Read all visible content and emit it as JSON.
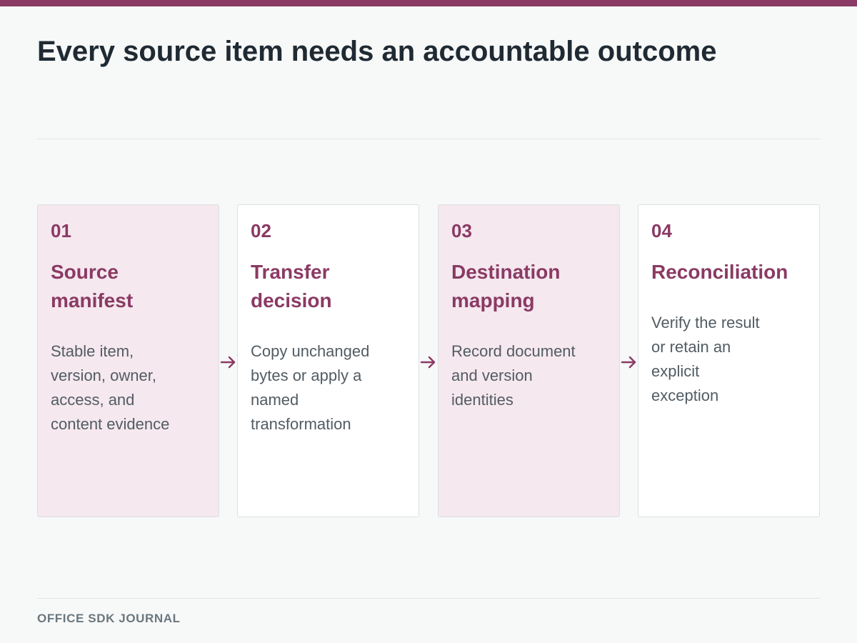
{
  "colors": {
    "accent": "#8a3a64",
    "tint": "#f5e8ee",
    "title_text": "#1f2a33",
    "body_text": "#525c63",
    "footer_text": "#6b777e",
    "background": "#f7f8f8"
  },
  "title": "Every source item needs an accountable outcome",
  "steps": [
    {
      "number": "01",
      "title_lines": [
        "Source",
        "manifest"
      ],
      "desc_lines": [
        "Stable item,",
        "version, owner,",
        "access, and",
        "content evidence"
      ]
    },
    {
      "number": "02",
      "title_lines": [
        "Transfer",
        "decision"
      ],
      "desc_lines": [
        "Copy unchanged",
        "bytes or apply a",
        "named",
        "transformation"
      ]
    },
    {
      "number": "03",
      "title_lines": [
        "Destination",
        "mapping"
      ],
      "desc_lines": [
        "Record document",
        "and version",
        "identities"
      ]
    },
    {
      "number": "04",
      "title_lines": [
        "Reconciliation"
      ],
      "desc_lines": [
        "Verify the result",
        "or retain an",
        "explicit",
        "exception"
      ]
    }
  ],
  "connector_icon": "right-arrow-icon",
  "footer": {
    "brand": "OFFICE SDK JOURNAL"
  }
}
